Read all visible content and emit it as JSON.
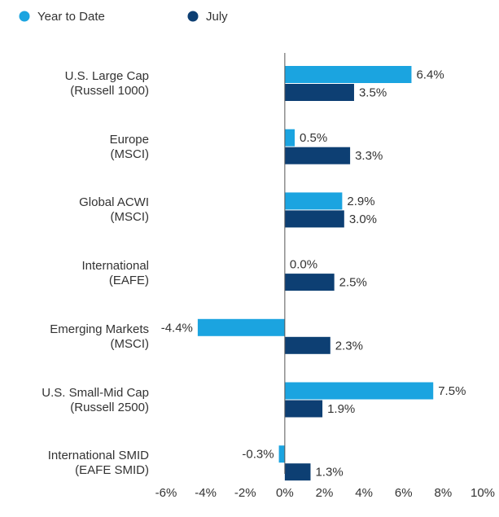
{
  "chart_data": {
    "type": "barh",
    "categories": [
      "U.S. Large Cap\n(Russell 1000)",
      "Europe\n(MSCI)",
      "Global ACWI\n(MSCI)",
      "International\n(EAFE)",
      "Emerging Markets\n(MSCI)",
      "U.S. Small-Mid Cap\n(Russell 2500)",
      "International SMID\n(EAFE SMID)"
    ],
    "series": [
      {
        "name": "Year to Date",
        "color": "#1ba4e0",
        "values": [
          6.4,
          0.5,
          2.9,
          0.0,
          -4.4,
          7.5,
          -0.3
        ],
        "value_labels": [
          "6.4%",
          "0.5%",
          "2.9%",
          "0.0%",
          "-4.4%",
          "7.5%",
          "-0.3%"
        ]
      },
      {
        "name": "July",
        "color": "#0d3f73",
        "values": [
          3.5,
          3.3,
          3.0,
          2.5,
          2.3,
          1.9,
          1.3
        ],
        "value_labels": [
          "3.5%",
          "3.3%",
          "3.0%",
          "2.5%",
          "2.3%",
          "1.9%",
          "1.3%"
        ]
      }
    ],
    "xlim": [
      -6,
      10
    ],
    "xticks": [
      {
        "value": -6,
        "label": "-6%"
      },
      {
        "value": -4,
        "label": "-4%"
      },
      {
        "value": -2,
        "label": "-2%"
      },
      {
        "value": 0,
        "label": "0%"
      },
      {
        "value": 2,
        "label": "2%"
      },
      {
        "value": 4,
        "label": "4%"
      },
      {
        "value": 6,
        "label": "6%"
      },
      {
        "value": 8,
        "label": "8%"
      },
      {
        "value": 10,
        "label": "10%"
      }
    ],
    "legend": "top-left"
  }
}
